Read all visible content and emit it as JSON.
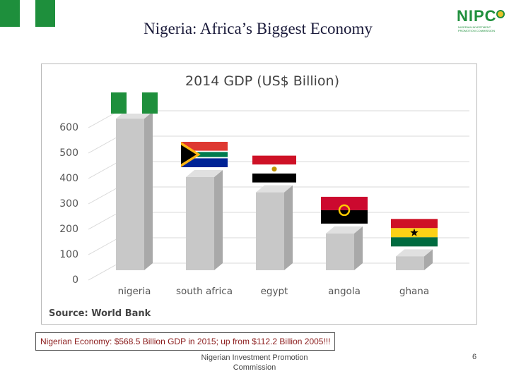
{
  "slide": {
    "title": "Nigeria: Africa’s Biggest Economy",
    "logo_text": "NIPC",
    "logo_subtitle": "NIGERIAN INVESTMENT PROMOTION COMMISSION",
    "note": "Nigerian Economy: $568.5 Billion GDP in 2015; up from  $112.2 Billion 2005!!!",
    "footer_line1": "Nigerian Investment Promotion",
    "footer_line2": "Commission",
    "page_number": "6"
  },
  "colors": {
    "nigeria_green": "#1e8f3c",
    "bar_gray": "#c8c8c8",
    "note_text": "#8a1a1a"
  },
  "chart_data": {
    "type": "bar",
    "title": "2014 GDP (US$ Billion)",
    "categories": [
      "nigeria",
      "south africa",
      "egypt",
      "angola",
      "ghana"
    ],
    "values": [
      580,
      350,
      290,
      128,
      38
    ],
    "ylim": [
      0,
      600
    ],
    "yticks": [
      0,
      100,
      200,
      300,
      400,
      500,
      600
    ],
    "xlabel": "",
    "ylabel": "",
    "source": "Source: World Bank",
    "flags": [
      "nigeria-flag",
      "south-africa-flag",
      "egypt-flag",
      "angola-flag",
      "ghana-flag"
    ],
    "grid": true
  }
}
